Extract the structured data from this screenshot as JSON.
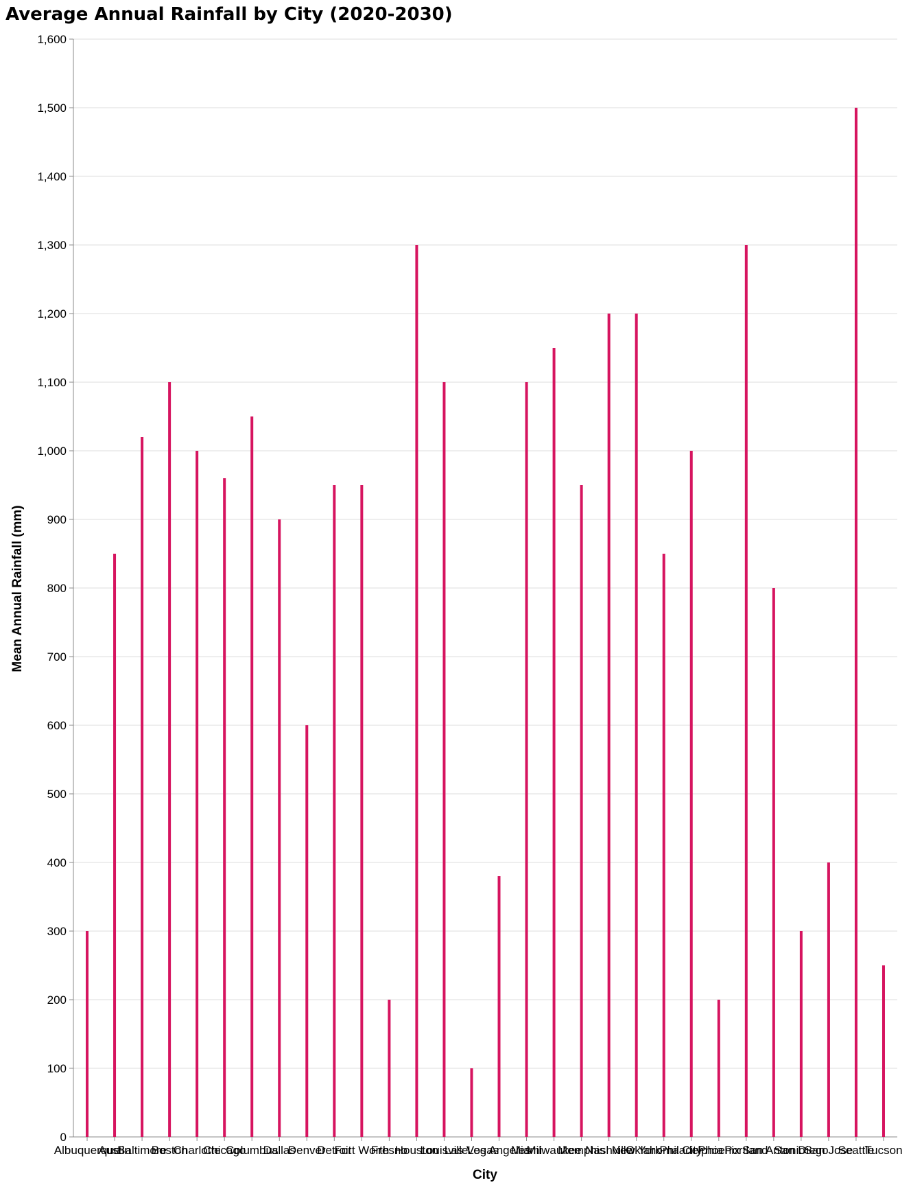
{
  "chart_data": {
    "type": "bar",
    "title": "Average Annual Rainfall by City (2020-2030)",
    "xlabel": "City",
    "ylabel": "Mean Annual Rainfall (mm)",
    "ylim": [
      0,
      1600
    ],
    "yticks": [
      0,
      100,
      200,
      300,
      400,
      500,
      600,
      700,
      800,
      900,
      1000,
      1100,
      1200,
      1300,
      1400,
      1500,
      1600
    ],
    "grid": true,
    "bar_color": "#d6145f",
    "categories": [
      "Albuquerque",
      "Austin",
      "Baltimore",
      "Boston",
      "Charlotte",
      "Chicago",
      "Columbus",
      "Dallas",
      "Denver",
      "Detroit",
      "Fort Worth",
      "Fresno",
      "Houston",
      "Louisville",
      "Las Vegas",
      "Los Angeles",
      "Miami",
      "Milwaukee",
      "Memphis",
      "Nashville",
      "New York",
      "Oklahoma City",
      "Philadelphia",
      "Phoenix",
      "Portland",
      "San Antonio",
      "San Diego",
      "San Jose",
      "Seattle",
      "Tucson"
    ],
    "values": [
      300,
      850,
      1020,
      1100,
      1000,
      960,
      1050,
      900,
      600,
      950,
      950,
      200,
      1300,
      1100,
      100,
      380,
      1100,
      1150,
      950,
      1200,
      1200,
      850,
      1000,
      200,
      1300,
      800,
      300,
      400,
      1500,
      250
    ]
  }
}
